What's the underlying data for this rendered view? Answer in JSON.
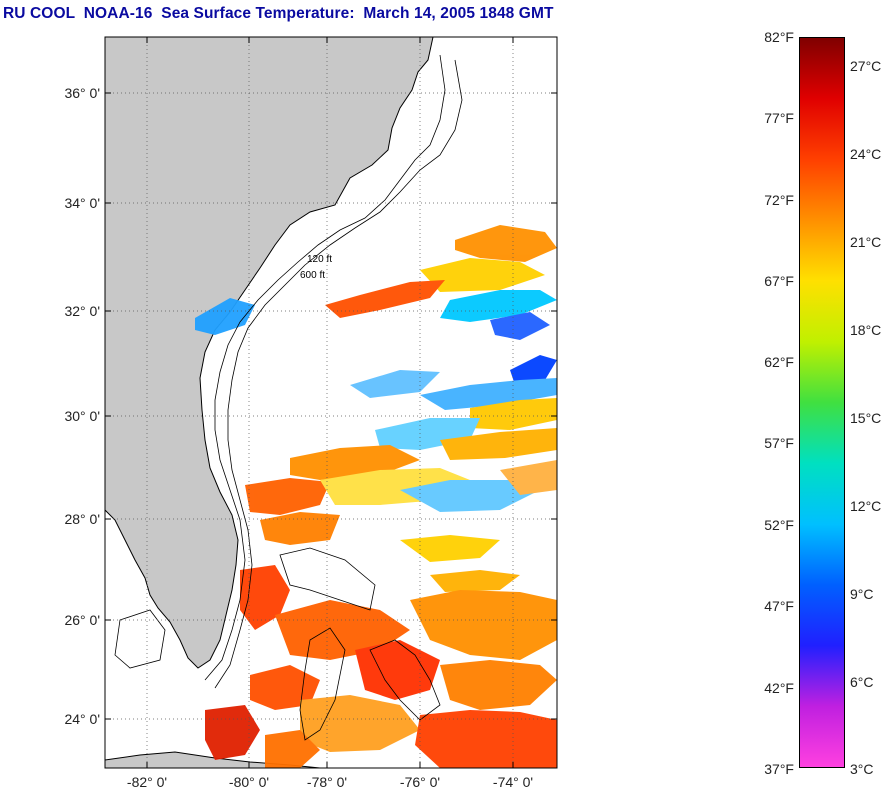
{
  "title": "RU COOL  NOAA-16  Sea Surface Temperature:  March 14, 2005 1848 GMT",
  "map": {
    "lat_labels": [
      "36° 0'",
      "34° 0'",
      "32° 0'",
      "30° 0'",
      "28° 0'",
      "26° 0'",
      "24° 0'"
    ],
    "lon_labels": [
      "-82° 0'",
      "-80° 0'",
      "-78° 0'",
      "-76° 0'",
      "-74° 0'"
    ],
    "isobath_labels": [
      "120 ft",
      "600 ft"
    ],
    "land_color": "#c8c8c8",
    "ocean_no_data_color": "#ffffff"
  },
  "colorbar": {
    "fahrenheit_labels": [
      "82°F",
      "77°F",
      "72°F",
      "67°F",
      "62°F",
      "57°F",
      "52°F",
      "47°F",
      "42°F",
      "37°F"
    ],
    "celsius_labels": [
      "27°C",
      "24°C",
      "21°C",
      "18°C",
      "15°C",
      "12°C",
      "9°C",
      "6°C",
      "3°C"
    ],
    "range_f": [
      37,
      82
    ],
    "colors_bottom_to_top": [
      "#ff40e0",
      "#c020e0",
      "#2020ff",
      "#0060ff",
      "#00c0ff",
      "#00e0c0",
      "#40e040",
      "#c0f000",
      "#ffe000",
      "#ff9000",
      "#ff4000",
      "#e00000",
      "#800000"
    ]
  }
}
